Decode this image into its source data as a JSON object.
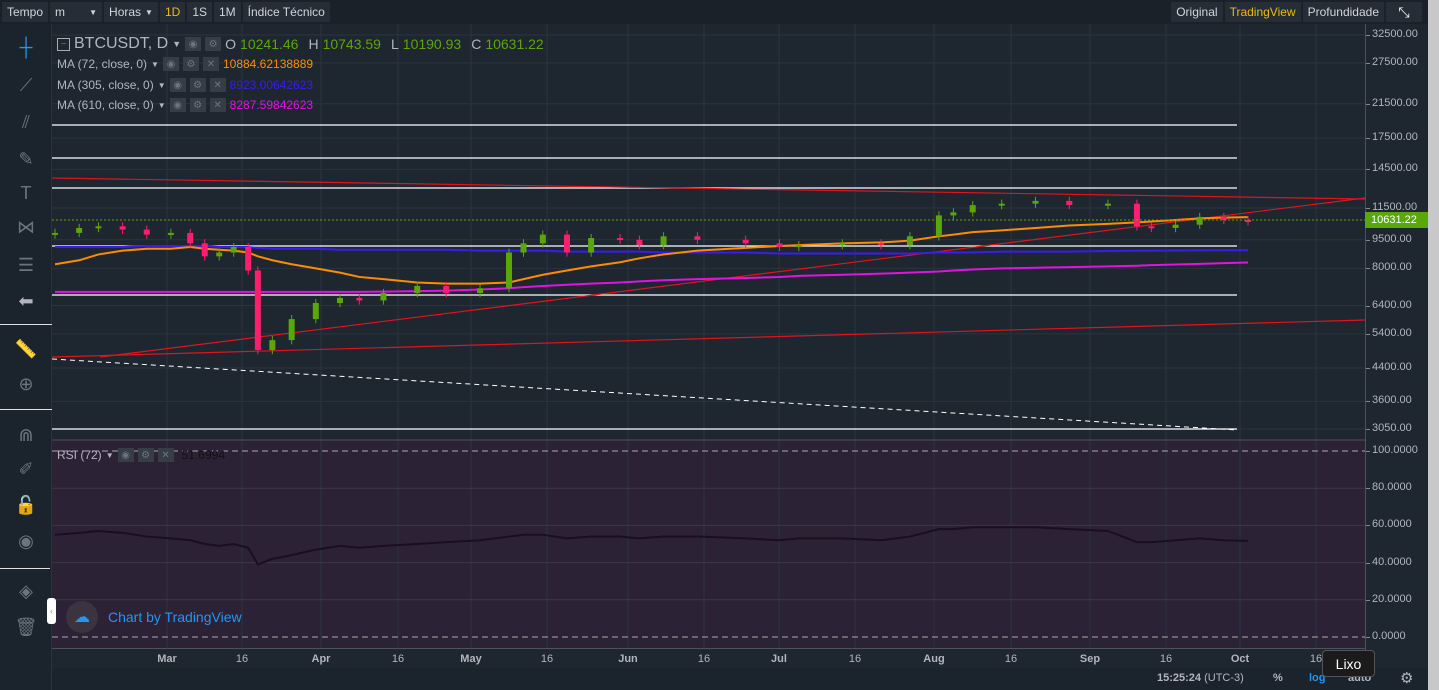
{
  "toolbar": {
    "tempo": "Tempo",
    "minutes": "m",
    "hours": "Horas",
    "d1": "1D",
    "w1": "1S",
    "m1": "1M",
    "indicator": "Índice Técnico",
    "original": "Original",
    "tradingview": "TradingView",
    "depth": "Profundidade"
  },
  "symbol": {
    "name": "BTCUSDT, D",
    "o_label": "O",
    "o": "10241.46",
    "h_label": "H",
    "h": "10743.59",
    "l_label": "L",
    "l": "10190.93",
    "c_label": "C",
    "c": "10631.22"
  },
  "studies": [
    {
      "label": "MA (72, close, 0)",
      "value": "10884.62138889",
      "color": "#ff8c00"
    },
    {
      "label": "MA (305, close, 0)",
      "value": "8923.00642623",
      "color": "#3a1cf0"
    },
    {
      "label": "MA (610, close, 0)",
      "value": "8287.59842623",
      "color": "#e014e0"
    }
  ],
  "rsi": {
    "label": "RSI (72)",
    "value": "51.6994"
  },
  "watermark": "Chart by TradingView",
  "last_price": "10631.22",
  "price_ticks": [
    "32500.00",
    "27500.00",
    "21500.00",
    "17500.00",
    "14500.00",
    "11500.00",
    "9500.00",
    "8000.00",
    "6400.00",
    "5400.00",
    "4400.00",
    "3600.00",
    "3050.00"
  ],
  "rsi_ticks": [
    "100.0000",
    "80.0000",
    "60.0000",
    "40.0000",
    "20.0000",
    "0.0000"
  ],
  "date_ticks": [
    {
      "t": "Mar",
      "b": true
    },
    {
      "t": "16"
    },
    {
      "t": "Apr",
      "b": true
    },
    {
      "t": "16"
    },
    {
      "t": "May",
      "b": true
    },
    {
      "t": "16"
    },
    {
      "t": "Jun",
      "b": true
    },
    {
      "t": "16"
    },
    {
      "t": "Jul",
      "b": true
    },
    {
      "t": "16"
    },
    {
      "t": "Aug",
      "b": true
    },
    {
      "t": "16"
    },
    {
      "t": "Sep",
      "b": true
    },
    {
      "t": "16"
    },
    {
      "t": "Oct",
      "b": true
    },
    {
      "t": "16"
    }
  ],
  "status": {
    "time": "15:25:24",
    "tz": "(UTC-3)",
    "percent": "%",
    "log": "log",
    "auto": "auto"
  },
  "tooltip": "Lixo",
  "chart_data": {
    "type": "candlestick",
    "scale": "log",
    "day_offsets": [
      0,
      5,
      9,
      14,
      19,
      24,
      28,
      31,
      34,
      37,
      40,
      42,
      45,
      49,
      54,
      59,
      63,
      68,
      75,
      81,
      88,
      94,
      97,
      101,
      106,
      111,
      117,
      121,
      126,
      133,
      143,
      150,
      154,
      163,
      171,
      177,
      183,
      186,
      190,
      196,
      203,
      210,
      218,
      224,
      227,
      232,
      237,
      242,
      247
    ],
    "closes": [
      9900,
      10200,
      10300,
      10100,
      9800,
      9900,
      9300,
      8600,
      8800,
      9100,
      7900,
      4900,
      5200,
      5900,
      6500,
      6700,
      6600,
      6900,
      7200,
      6900,
      7100,
      8800,
      9300,
      9800,
      8800,
      9600,
      9500,
      9200,
      9700,
      9500,
      9300,
      9100,
      9200,
      9300,
      9200,
      9700,
      11000,
      11200,
      11700,
      11800,
      12000,
      11700,
      11800,
      10300,
      10200,
      10400,
      10900,
      10700,
      10631
    ],
    "ma72": [
      8200,
      8400,
      8700,
      8900,
      9000,
      9000,
      9100,
      9000,
      8950,
      8900,
      8800,
      8600,
      8400,
      8200,
      8000,
      7800,
      7600,
      7500,
      7350,
      7300,
      7300,
      7350,
      7500,
      7700,
      7900,
      8100,
      8300,
      8500,
      8700,
      8900,
      9050,
      9150,
      9200,
      9300,
      9350,
      9450,
      9700,
      9800,
      9950,
      10050,
      10200,
      10350,
      10450,
      10550,
      10600,
      10700,
      10800,
      10850,
      10885
    ],
    "ma305": [
      9100,
      9100,
      9100,
      9100,
      9150,
      9150,
      9150,
      9150,
      9100,
      9100,
      9100,
      9050,
      9000,
      9000,
      9000,
      8950,
      8950,
      8950,
      8950,
      8950,
      8900,
      8900,
      8900,
      8900,
      8850,
      8850,
      8850,
      8850,
      8800,
      8800,
      8800,
      8750,
      8750,
      8750,
      8750,
      8750,
      8800,
      8800,
      8800,
      8850,
      8850,
      8850,
      8880,
      8900,
      8900,
      8910,
      8915,
      8920,
      8923
    ],
    "ma610": [
      6950,
      6950,
      6950,
      6950,
      6950,
      6950,
      6950,
      6950,
      6950,
      6950,
      6950,
      6950,
      6950,
      6950,
      6950,
      6950,
      6950,
      6960,
      6980,
      7000,
      7050,
      7100,
      7150,
      7200,
      7250,
      7300,
      7350,
      7400,
      7450,
      7500,
      7550,
      7600,
      7650,
      7700,
      7750,
      7800,
      7850,
      7900,
      7950,
      8000,
      8030,
      8060,
      8100,
      8130,
      8160,
      8190,
      8220,
      8260,
      8288
    ],
    "rsi": [
      55,
      56,
      57,
      56,
      54,
      53,
      52,
      50,
      49,
      50,
      48,
      39,
      42,
      44,
      47,
      49,
      48,
      49,
      50,
      51,
      52,
      54,
      55,
      55,
      53,
      54,
      54,
      53,
      54,
      54,
      53,
      52,
      53,
      53,
      52,
      54,
      58,
      58,
      59,
      59,
      59,
      58,
      57,
      51,
      51,
      52,
      53,
      52,
      51.7
    ]
  }
}
